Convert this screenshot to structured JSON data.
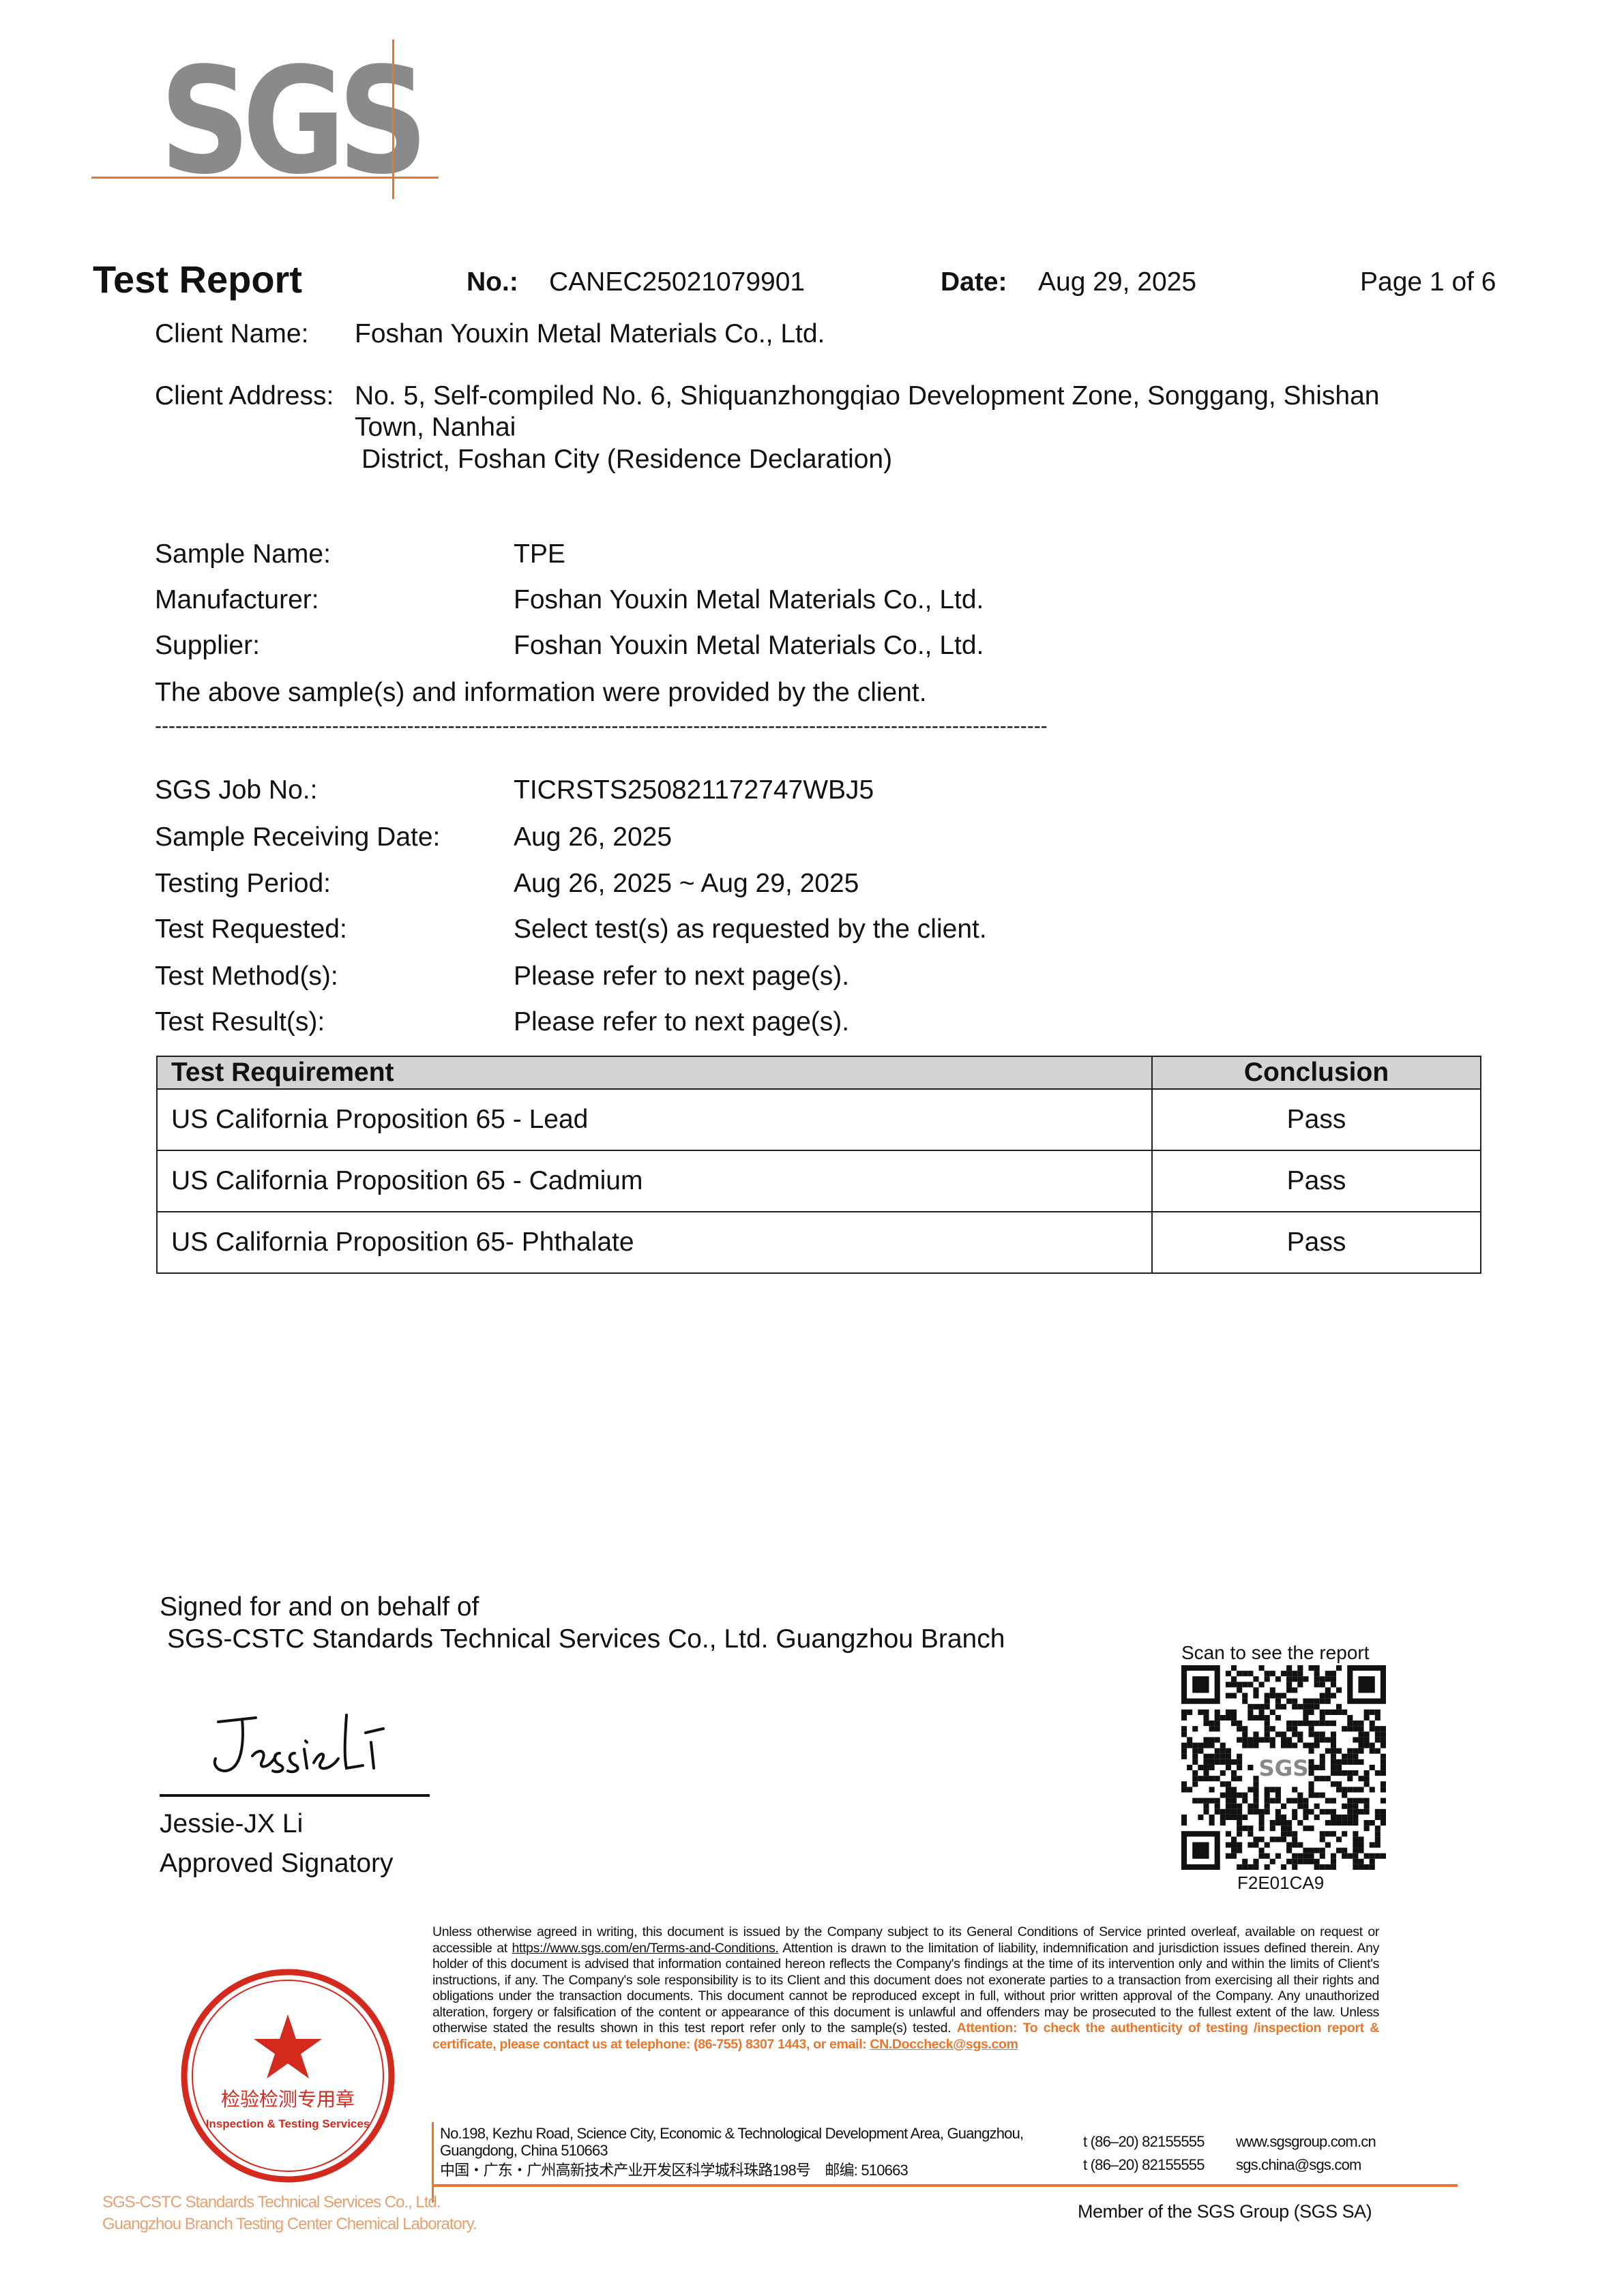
{
  "logo": {
    "text": "SGS",
    "color": "#8a8a8a",
    "accent": "#e8772e"
  },
  "header": {
    "title": "Test Report",
    "no_label": "No.:",
    "no_value": "CANEC25021079901",
    "date_label": "Date:",
    "date_value": "Aug 29, 2025",
    "page": "Page 1 of 6"
  },
  "client": {
    "name_label": "Client Name:",
    "name_value": "Foshan Youxin Metal Materials Co., Ltd.",
    "address_label": "Client Address:",
    "address_line1": "No. 5, Self-compiled No. 6, Shiquanzhongqiao Development Zone, Songgang, Shishan",
    "address_line2": "Town, Nanhai",
    "address_line3": "District, Foshan City (Residence Declaration)"
  },
  "sample": [
    {
      "label": "Sample Name:",
      "value": "TPE"
    },
    {
      "label": "Manufacturer:",
      "value": "Foshan Youxin Metal Materials Co., Ltd."
    },
    {
      "label": "Supplier:",
      "value": "Foshan Youxin Metal Materials Co., Ltd."
    }
  ],
  "provided_note": "The above sample(s) and information were provided by the client.",
  "separator": "-----------------------------------------------------------------------------------------------------------------------------------",
  "job": [
    {
      "label": "SGS Job No.:",
      "value": "TICRSTS250821172747WBJ5"
    },
    {
      "label": "Sample Receiving Date:",
      "value": "Aug 26, 2025"
    },
    {
      "label": "Testing Period:",
      "value": "Aug 26, 2025 ~ Aug 29, 2025"
    },
    {
      "label": "Test Requested:",
      "value": "Select test(s) as requested by the client."
    },
    {
      "label": "Test Method(s):",
      "value": "Please refer to next page(s)."
    },
    {
      "label": "Test Result(s):",
      "value": "Please refer to next page(s)."
    }
  ],
  "results_table": {
    "headers": [
      "Test Requirement",
      "Conclusion"
    ],
    "rows": [
      [
        "US California Proposition 65 - Lead",
        "Pass"
      ],
      [
        "US California Proposition 65 - Cadmium",
        "Pass"
      ],
      [
        "US California Proposition 65- Phthalate",
        "Pass"
      ]
    ]
  },
  "signature": {
    "line1": "Signed for and on behalf of",
    "line2": "SGS-CSTC Standards Technical Services Co., Ltd. Guangzhou Branch",
    "signature_text": "Jessie Li",
    "name": "Jessie-JX Li",
    "role": "Approved Signatory"
  },
  "qr": {
    "caption": "Scan to see the report",
    "code": "F2E01CA9",
    "center_logo": "SGS"
  },
  "stamp": {
    "text": "检验检测专用章",
    "sub": "Inspection & Testing Services",
    "color": "#d42a1e"
  },
  "footer": {
    "disclaimer_a": "Unless otherwise agreed in writing, this document is issued by the Company subject to its General Conditions of Service printed overleaf, available on request or accessible at",
    "terms_link": "https://www.sgs.com/en/Terms-and-Conditions.",
    "disclaimer_b": "Attention is drawn to the limitation of liability, indemnification and jurisdiction issues defined therein. Any holder of this document is advised that information contained hereon reflects the Company's findings at the time of its intervention only and within the limits of Client's instructions, if any. The Company's sole responsibility is to its Client and this document does not exonerate parties to a transaction from exercising all their rights and obligations under the transaction documents. This document cannot be reproduced except in full, without prior written approval of the Company. Any unauthorized alteration, forgery or falsification of the content or appearance of this document is unlawful and offenders may be prosecuted to the fullest extent of the law. Unless otherwise stated the results shown in this test report refer only to the sample(s) tested.",
    "attention": "Attention: To check the authenticity of testing /inspection report & certificate, please contact us at telephone: (86-755) 8307 1443, or email:",
    "email": "CN.Doccheck@sgs.com",
    "company_left1": "SGS-CSTC Standards Technical Services Co., Ltd.",
    "company_left2": "Guangzhou Branch Testing Center Chemical Laboratory.",
    "address_en": "No.198, Kezhu Road, Science City, Economic & Technological Development Area, Guangzhou, Guangdong, China 510663",
    "address_cn": "中国・广东・广州高新技术产业开发区科学城科珠路198号　邮编: 510663",
    "tel1": "t (86–20) 82155555",
    "tel2": "t (86–20) 82155555",
    "web": "www.sgsgroup.com.cn",
    "mail": "sgs.china@sgs.com",
    "member": "Member of the SGS Group (SGS SA)"
  }
}
